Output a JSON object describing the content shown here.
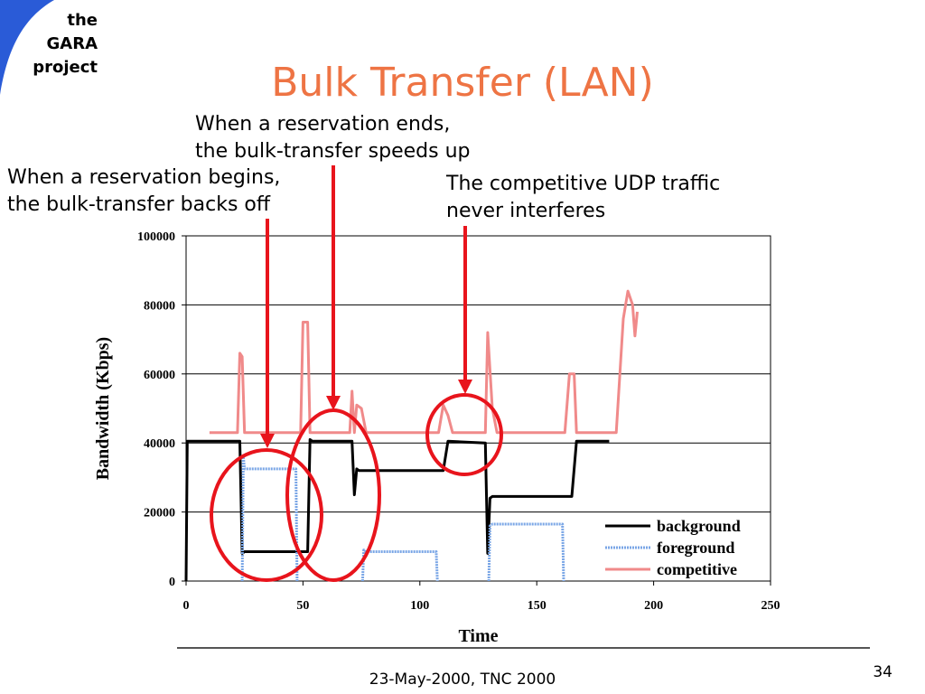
{
  "logo": [
    "the",
    "GARA",
    "project"
  ],
  "title": "Bulk Transfer (LAN)",
  "annotations": [
    [
      "When a reservation ends,",
      "the bulk-transfer speeds up"
    ],
    [
      "When a reservation begins,",
      "the bulk-transfer backs off"
    ],
    [
      "The competitive UDP traffic",
      "never interferes"
    ]
  ],
  "footer": "23-May-2000, TNC 2000",
  "page_number": 34,
  "chart_data": {
    "type": "line",
    "x_label": "Time",
    "y_label": "Bandwidth (Kbps)",
    "xlim": [
      0,
      250
    ],
    "xticks": [
      0,
      50,
      100,
      150,
      200,
      250
    ],
    "ylim": [
      0,
      100000
    ],
    "yticks": [
      0,
      20000,
      40000,
      60000,
      80000,
      100000
    ],
    "grid": true,
    "legend": "lower right",
    "series": [
      {
        "name": "background",
        "color": "#000000",
        "style": "solid",
        "x": [
          0,
          0.5,
          23,
          24,
          25,
          52,
          53,
          54,
          71,
          72,
          73,
          74,
          110,
          112,
          128,
          129,
          130,
          131,
          165,
          167,
          181
        ],
        "values": [
          0,
          40500,
          40500,
          8000,
          8500,
          8500,
          41000,
          40500,
          40500,
          25000,
          32500,
          32000,
          32000,
          40500,
          40000,
          8000,
          24000,
          24500,
          24500,
          40500,
          40500
        ]
      },
      {
        "name": "foreground",
        "color": "#7aa6e6",
        "style": "dotted",
        "x": [
          24,
          24.5,
          25,
          47,
          47.5,
          48,
          75.5,
          76,
          77,
          107,
          107.5,
          108,
          129.5,
          130,
          131,
          161,
          161.5
        ],
        "values": [
          0,
          36000,
          32500,
          32500,
          0,
          null,
          0,
          9000,
          8500,
          8500,
          0,
          null,
          0,
          16000,
          16500,
          16500,
          0
        ]
      },
      {
        "name": "competitive",
        "color": "#f08a8a",
        "style": "solid",
        "x": [
          10,
          22,
          23,
          24,
          25,
          49,
          50,
          52,
          53,
          70,
          71,
          72,
          73,
          75,
          77,
          108,
          110,
          112,
          114,
          128,
          129,
          131,
          133,
          162,
          164,
          166,
          167,
          184,
          187,
          189,
          191,
          192,
          193
        ],
        "values": [
          43000,
          43000,
          66000,
          65000,
          43000,
          43000,
          75000,
          75000,
          43000,
          43000,
          55000,
          43000,
          51000,
          50000,
          43000,
          43000,
          51000,
          48000,
          43000,
          43000,
          72000,
          50000,
          43000,
          43000,
          60000,
          60000,
          43000,
          43000,
          76000,
          84000,
          80000,
          71000,
          78000
        ]
      }
    ]
  }
}
